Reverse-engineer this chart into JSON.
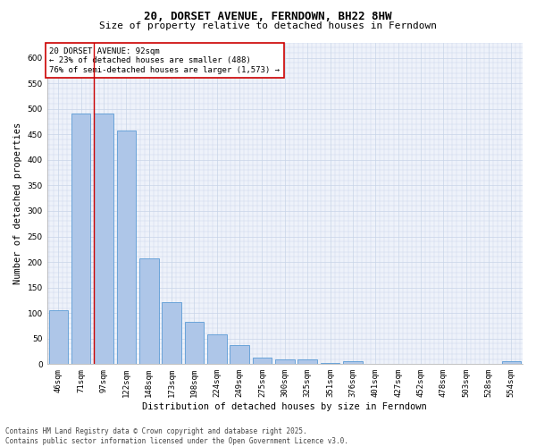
{
  "title": "20, DORSET AVENUE, FERNDOWN, BH22 8HW",
  "subtitle": "Size of property relative to detached houses in Ferndown",
  "xlabel": "Distribution of detached houses by size in Ferndown",
  "ylabel": "Number of detached properties",
  "categories": [
    "46sqm",
    "71sqm",
    "97sqm",
    "122sqm",
    "148sqm",
    "173sqm",
    "198sqm",
    "224sqm",
    "249sqm",
    "275sqm",
    "300sqm",
    "325sqm",
    "351sqm",
    "376sqm",
    "401sqm",
    "427sqm",
    "452sqm",
    "478sqm",
    "503sqm",
    "528sqm",
    "554sqm"
  ],
  "values": [
    105,
    490,
    490,
    458,
    208,
    122,
    82,
    58,
    38,
    13,
    10,
    10,
    2,
    5,
    0,
    0,
    0,
    0,
    0,
    0,
    5
  ],
  "bar_color": "#aec6e8",
  "bar_edge_color": "#5b9bd5",
  "vline_color": "#cc0000",
  "vline_pos": 1.575,
  "annotation_text": "20 DORSET AVENUE: 92sqm\n← 23% of detached houses are smaller (488)\n76% of semi-detached houses are larger (1,573) →",
  "annotation_box_facecolor": "#ffffff",
  "annotation_box_edgecolor": "#cc0000",
  "ylim": [
    0,
    630
  ],
  "yticks": [
    0,
    50,
    100,
    150,
    200,
    250,
    300,
    350,
    400,
    450,
    500,
    550,
    600
  ],
  "grid_color": "#c8d4e8",
  "background_color": "#eef2fa",
  "footer": "Contains HM Land Registry data © Crown copyright and database right 2025.\nContains public sector information licensed under the Open Government Licence v3.0.",
  "title_fontsize": 9,
  "subtitle_fontsize": 8,
  "axis_label_fontsize": 7.5,
  "tick_fontsize": 6.5,
  "annotation_fontsize": 6.5,
  "footer_fontsize": 5.5
}
